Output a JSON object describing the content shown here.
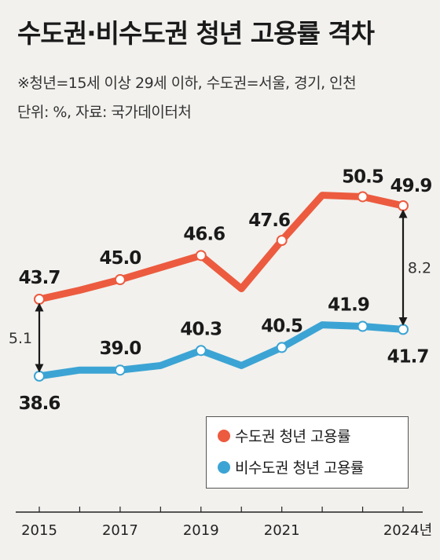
{
  "header": {
    "title": "수도권·비수도권 청년 고용률 격차",
    "note1": "※청년=15세 이상 29세 이하, 수도권=서울, 경기, 인천",
    "note2": "단위: %, 자료: 국가데이터처"
  },
  "legend": {
    "items": [
      {
        "label": "수도권 청년 고용률"
      },
      {
        "label": "비수도권 청년 고용률"
      }
    ]
  },
  "colors": {
    "capital": "#ec5b3f",
    "noncapital": "#3ca4d4",
    "background": "#f2f1ee"
  },
  "chart_data": {
    "type": "line",
    "x": [
      2015,
      2016,
      2017,
      2018,
      2019,
      2020,
      2021,
      2022,
      2023,
      2024
    ],
    "x_ticks": [
      "2015",
      "2017",
      "2019",
      "2021",
      "2024년"
    ],
    "series": [
      {
        "name": "수도권 청년 고용률",
        "values": [
          43.7,
          44.3,
          45.0,
          45.8,
          46.6,
          44.4,
          47.6,
          50.6,
          50.5,
          49.9
        ],
        "point_labels": {
          "2015": "43.7",
          "2017": "45.0",
          "2019": "46.6",
          "2021": "47.6",
          "2023": "50.5",
          "2024": "49.9"
        }
      },
      {
        "name": "비수도권 청년 고용률",
        "values": [
          38.6,
          39.0,
          39.0,
          39.3,
          40.3,
          39.3,
          40.5,
          42.0,
          41.9,
          41.7
        ],
        "point_labels": {
          "2015": "38.6",
          "2017": "39.0",
          "2019": "40.3",
          "2021": "40.5",
          "2023": "41.9",
          "2024": "41.7"
        }
      }
    ],
    "annotations": [
      {
        "x": 2015,
        "text": "5.1"
      },
      {
        "x": 2024,
        "text": "8.2"
      }
    ],
    "markers_at": [
      2015,
      2017,
      2019,
      2021,
      2023,
      2024
    ],
    "grid": false,
    "legend_position": "bottom-right"
  }
}
